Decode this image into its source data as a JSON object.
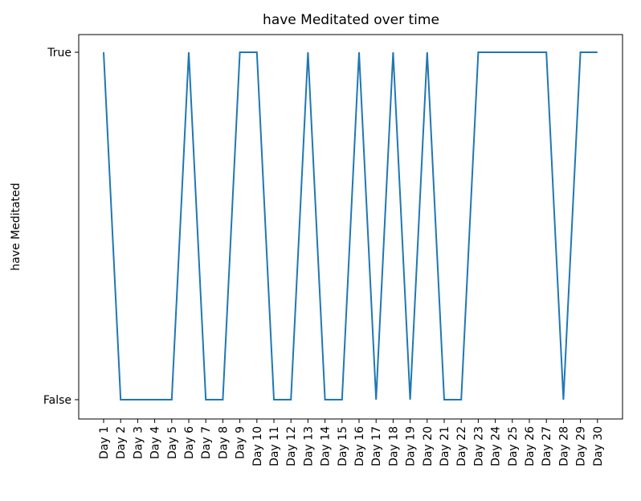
{
  "chart_data": {
    "type": "line",
    "title": "have Meditated over time",
    "xlabel": "",
    "ylabel": "have Meditated",
    "categories": [
      "Day 1",
      "Day 2",
      "Day 3",
      "Day 4",
      "Day 5",
      "Day 6",
      "Day 7",
      "Day 8",
      "Day 9",
      "Day 10",
      "Day 11",
      "Day 12",
      "Day 13",
      "Day 14",
      "Day 15",
      "Day 16",
      "Day 17",
      "Day 18",
      "Day 19",
      "Day 20",
      "Day 21",
      "Day 22",
      "Day 23",
      "Day 24",
      "Day 25",
      "Day 26",
      "Day 27",
      "Day 28",
      "Day 29",
      "Day 30"
    ],
    "y_tick_labels": [
      "False",
      "True"
    ],
    "values": [
      1,
      0,
      0,
      0,
      0,
      1,
      0,
      0,
      1,
      1,
      0,
      0,
      1,
      0,
      0,
      1,
      0,
      1,
      0,
      1,
      0,
      0,
      1,
      1,
      1,
      1,
      1,
      0,
      1,
      1
    ],
    "ylim": [
      0,
      1
    ],
    "grid": false,
    "line_color": "#1f77b4"
  }
}
